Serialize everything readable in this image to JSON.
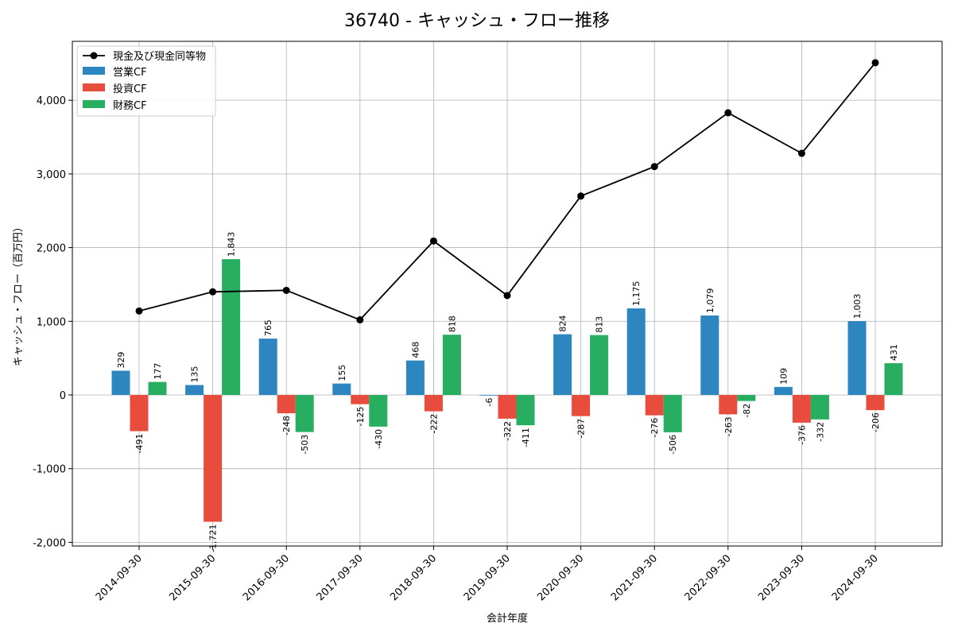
{
  "chart_data": {
    "type": "bar",
    "title": "36740 - キャッシュ・フロー推移",
    "xlabel": "会計年度",
    "ylabel": "キャッシュ・フロー（百万円）",
    "ylim": [
      -2050,
      4800
    ],
    "yticks": [
      -2000,
      -1000,
      0,
      1000,
      2000,
      3000,
      4000
    ],
    "ytick_labels": [
      "-2,000",
      "-1,000",
      "0",
      "1,000",
      "2,000",
      "3,000",
      "4,000"
    ],
    "grid": true,
    "legend_position": "top-left",
    "categories": [
      "2014-09-30",
      "2015-09-30",
      "2016-09-30",
      "2017-09-30",
      "2018-09-30",
      "2019-09-30",
      "2020-09-30",
      "2021-09-30",
      "2022-09-30",
      "2023-09-30",
      "2024-09-30"
    ],
    "series": [
      {
        "name": "営業CF",
        "kind": "bar",
        "color": "#2e86c1",
        "values": [
          329,
          135,
          765,
          155,
          468,
          -6,
          824,
          1175,
          1079,
          109,
          1003
        ],
        "labels": [
          "329",
          "135",
          "765",
          "155",
          "468",
          "-6",
          "824",
          "1,175",
          "1,079",
          "109",
          "1,003"
        ]
      },
      {
        "name": "投資CF",
        "kind": "bar",
        "color": "#e74c3c",
        "values": [
          -491,
          -1721,
          -248,
          -125,
          -222,
          -322,
          -287,
          -276,
          -263,
          -376,
          -206
        ],
        "labels": [
          "-491",
          "-1,721",
          "-248",
          "-125",
          "-222",
          "-322",
          "-287",
          "-276",
          "-263",
          "-376",
          "-206"
        ]
      },
      {
        "name": "財務CF",
        "kind": "bar",
        "color": "#27ae60",
        "values": [
          177,
          1843,
          -503,
          -430,
          818,
          -411,
          813,
          -506,
          -82,
          -332,
          431
        ],
        "labels": [
          "177",
          "1,843",
          "-503",
          "-430",
          "818",
          "-411",
          "813",
          "-506",
          "-82",
          "-332",
          "431"
        ]
      },
      {
        "name": "現金及び現金同等物",
        "kind": "line",
        "color": "#000000",
        "values": [
          1140,
          1400,
          1420,
          1020,
          2090,
          1350,
          2700,
          3100,
          3830,
          3280,
          4510
        ]
      }
    ]
  }
}
